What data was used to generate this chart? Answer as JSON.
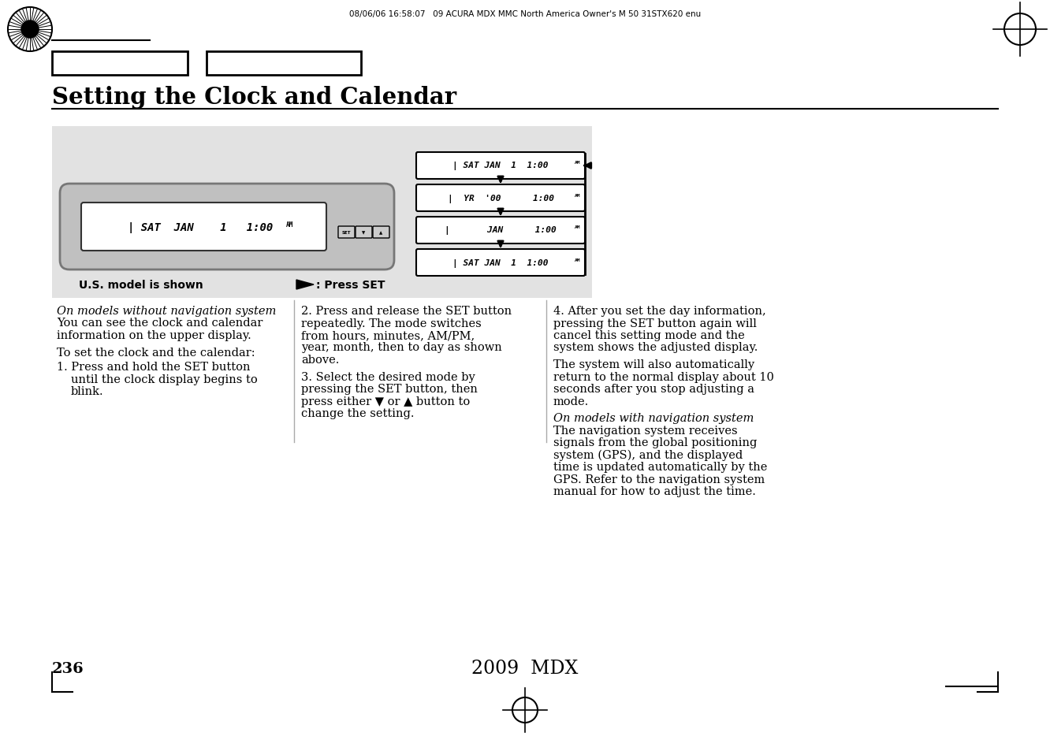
{
  "page_title": "Setting the Clock and Calendar",
  "header_text": "08/06/06 16:58:07   09 ACURA MDX MMC North America Owner's M 50 31STX620 enu",
  "page_number": "236",
  "footer_center": "2009  MDX",
  "bg_color": "#ffffff",
  "diagram_bg": "#e2e2e2",
  "display_rows": [
    "| SAT JAN   1   1:00 ᴀᴍ",
    "|  YR  '00       1:00 ᴀᴍ",
    "|       JAN       1:00 ᴀᴍ",
    "| SAT JAN   1   1:00 ᴀᴍ"
  ],
  "label_us_model": "U.S. model is shown",
  "label_press_set": ": Press SET",
  "col1_title_italic": "On models without navigation system",
  "col3_italic": "On models with navigation system"
}
